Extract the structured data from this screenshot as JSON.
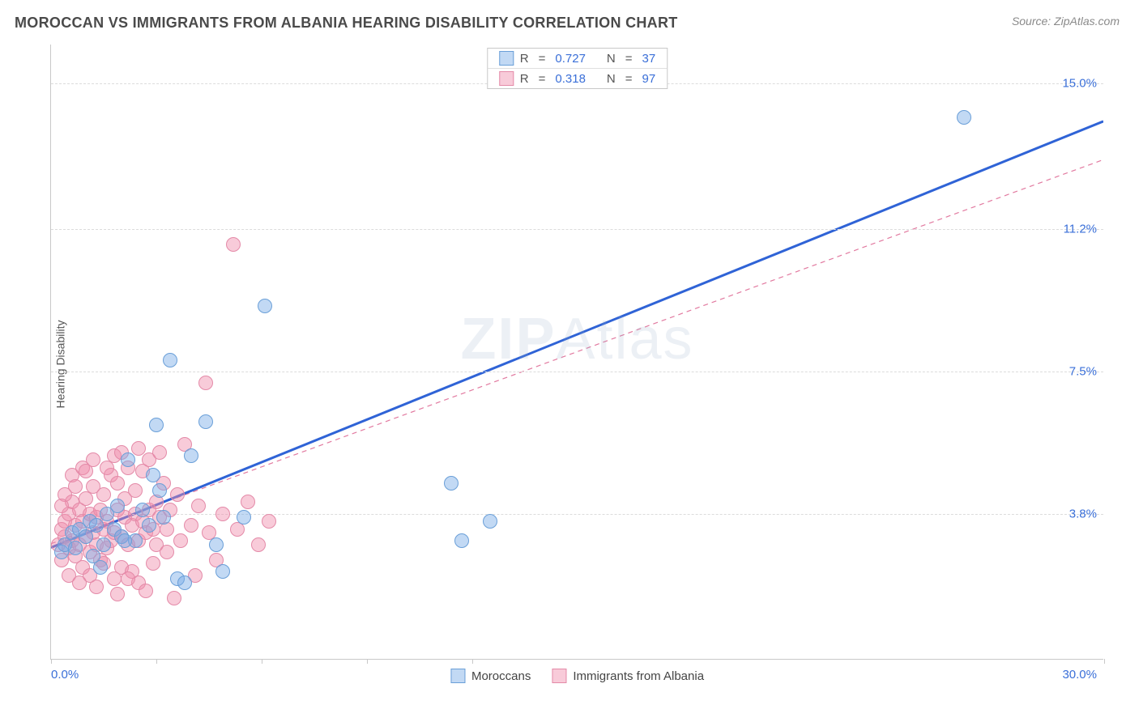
{
  "header": {
    "title": "MOROCCAN VS IMMIGRANTS FROM ALBANIA HEARING DISABILITY CORRELATION CHART",
    "source": "Source: ZipAtlas.com"
  },
  "chart": {
    "type": "scatter",
    "y_axis_label": "Hearing Disability",
    "watermark_a": "ZIP",
    "watermark_b": "Atlas",
    "xlim": [
      0,
      30
    ],
    "ylim": [
      0,
      16
    ],
    "x_left_label": "0.0%",
    "x_right_label": "30.0%",
    "x_ticks": [
      0,
      3,
      6,
      9,
      12,
      30
    ],
    "y_gridlines": [
      {
        "value": 3.8,
        "label": "3.8%"
      },
      {
        "value": 7.5,
        "label": "7.5%"
      },
      {
        "value": 11.2,
        "label": "11.2%"
      },
      {
        "value": 15.0,
        "label": "15.0%"
      }
    ],
    "background_color": "#ffffff",
    "grid_color": "#dcdcdc",
    "axis_color": "#c8c8c8",
    "y_label_color": "#3a6fd8",
    "series": {
      "moroccans": {
        "label": "Moroccans",
        "color_fill": "rgba(120,170,230,0.45)",
        "color_stroke": "#6a9fd8",
        "marker_size": 18,
        "trend_line": {
          "x1": 0,
          "y1": 2.9,
          "x2": 30,
          "y2": 14.0,
          "color": "#2f63d6",
          "width": 3,
          "dash": "none"
        },
        "R": "0.727",
        "N": "37",
        "points": [
          [
            0.3,
            2.8
          ],
          [
            0.4,
            3.0
          ],
          [
            0.6,
            3.3
          ],
          [
            0.7,
            2.9
          ],
          [
            0.8,
            3.4
          ],
          [
            1.0,
            3.2
          ],
          [
            1.1,
            3.6
          ],
          [
            1.2,
            2.7
          ],
          [
            1.3,
            3.5
          ],
          [
            1.5,
            3.0
          ],
          [
            1.6,
            3.8
          ],
          [
            1.8,
            3.4
          ],
          [
            1.9,
            4.0
          ],
          [
            2.0,
            3.2
          ],
          [
            2.2,
            5.2
          ],
          [
            2.4,
            3.1
          ],
          [
            2.6,
            3.9
          ],
          [
            2.8,
            3.5
          ],
          [
            3.0,
            6.1
          ],
          [
            3.2,
            3.7
          ],
          [
            3.4,
            7.8
          ],
          [
            3.6,
            2.1
          ],
          [
            3.8,
            2.0
          ],
          [
            4.0,
            5.3
          ],
          [
            4.4,
            6.2
          ],
          [
            4.7,
            3.0
          ],
          [
            4.9,
            2.3
          ],
          [
            5.5,
            3.7
          ],
          [
            6.1,
            9.2
          ],
          [
            11.4,
            4.6
          ],
          [
            11.7,
            3.1
          ],
          [
            12.5,
            3.6
          ],
          [
            26.0,
            14.1
          ],
          [
            3.1,
            4.4
          ],
          [
            2.9,
            4.8
          ],
          [
            1.4,
            2.4
          ],
          [
            2.1,
            3.1
          ]
        ]
      },
      "immigrants_albania": {
        "label": "Immigrants from Albania",
        "color_fill": "rgba(240,140,170,0.45)",
        "color_stroke": "#e48aa8",
        "marker_size": 18,
        "trend_line": {
          "x1": 0,
          "y1": 3.0,
          "x2": 30,
          "y2": 13.0,
          "color": "#e27aa0",
          "width": 1.2,
          "dash": "6 5"
        },
        "R": "0.318",
        "N": "97",
        "points": [
          [
            0.2,
            3.0
          ],
          [
            0.3,
            3.4
          ],
          [
            0.3,
            2.6
          ],
          [
            0.4,
            3.2
          ],
          [
            0.4,
            3.6
          ],
          [
            0.5,
            2.9
          ],
          [
            0.5,
            3.8
          ],
          [
            0.6,
            3.1
          ],
          [
            0.6,
            4.1
          ],
          [
            0.7,
            2.7
          ],
          [
            0.7,
            3.5
          ],
          [
            0.8,
            3.0
          ],
          [
            0.8,
            3.9
          ],
          [
            0.9,
            2.4
          ],
          [
            0.9,
            3.6
          ],
          [
            1.0,
            3.2
          ],
          [
            1.0,
            4.2
          ],
          [
            1.1,
            2.8
          ],
          [
            1.1,
            3.8
          ],
          [
            1.2,
            3.3
          ],
          [
            1.2,
            4.5
          ],
          [
            1.3,
            3.0
          ],
          [
            1.3,
            3.7
          ],
          [
            1.4,
            2.6
          ],
          [
            1.4,
            3.9
          ],
          [
            1.5,
            3.4
          ],
          [
            1.5,
            4.3
          ],
          [
            1.6,
            2.9
          ],
          [
            1.6,
            3.6
          ],
          [
            1.7,
            3.1
          ],
          [
            1.7,
            4.8
          ],
          [
            1.8,
            3.3
          ],
          [
            1.8,
            2.1
          ],
          [
            1.9,
            3.9
          ],
          [
            1.9,
            4.6
          ],
          [
            2.0,
            3.2
          ],
          [
            2.0,
            2.4
          ],
          [
            2.1,
            3.7
          ],
          [
            2.1,
            4.2
          ],
          [
            2.2,
            3.0
          ],
          [
            2.2,
            5.0
          ],
          [
            2.3,
            3.5
          ],
          [
            2.3,
            2.3
          ],
          [
            2.4,
            3.8
          ],
          [
            2.4,
            4.4
          ],
          [
            2.5,
            3.1
          ],
          [
            2.5,
            2.0
          ],
          [
            2.6,
            3.6
          ],
          [
            2.6,
            4.9
          ],
          [
            2.7,
            3.3
          ],
          [
            2.7,
            1.8
          ],
          [
            2.8,
            3.9
          ],
          [
            2.8,
            5.2
          ],
          [
            2.9,
            3.4
          ],
          [
            2.9,
            2.5
          ],
          [
            3.0,
            4.1
          ],
          [
            3.0,
            3.0
          ],
          [
            3.1,
            3.7
          ],
          [
            3.1,
            5.4
          ],
          [
            3.2,
            4.6
          ],
          [
            3.3,
            2.8
          ],
          [
            3.3,
            3.4
          ],
          [
            3.4,
            3.9
          ],
          [
            3.5,
            1.6
          ],
          [
            3.6,
            4.3
          ],
          [
            3.7,
            3.1
          ],
          [
            3.8,
            5.6
          ],
          [
            4.0,
            3.5
          ],
          [
            4.1,
            2.2
          ],
          [
            4.2,
            4.0
          ],
          [
            4.4,
            7.2
          ],
          [
            4.5,
            3.3
          ],
          [
            4.7,
            2.6
          ],
          [
            4.9,
            3.8
          ],
          [
            5.2,
            10.8
          ],
          [
            5.3,
            3.4
          ],
          [
            5.6,
            4.1
          ],
          [
            5.9,
            3.0
          ],
          [
            6.2,
            3.6
          ],
          [
            1.6,
            5.0
          ],
          [
            1.8,
            5.3
          ],
          [
            2.0,
            5.4
          ],
          [
            0.5,
            2.2
          ],
          [
            0.8,
            2.0
          ],
          [
            1.1,
            2.2
          ],
          [
            1.3,
            1.9
          ],
          [
            1.5,
            2.5
          ],
          [
            1.9,
            1.7
          ],
          [
            2.2,
            2.1
          ],
          [
            2.5,
            5.5
          ],
          [
            0.4,
            4.3
          ],
          [
            0.6,
            4.8
          ],
          [
            0.9,
            5.0
          ],
          [
            1.2,
            5.2
          ],
          [
            0.3,
            4.0
          ],
          [
            0.7,
            4.5
          ],
          [
            1.0,
            4.9
          ]
        ]
      }
    }
  },
  "legend_top": {
    "R_label": "R",
    "N_label": "N",
    "eq": "="
  },
  "bottom_legend": {
    "item1": "Moroccans",
    "item2": "Immigrants from Albania"
  }
}
